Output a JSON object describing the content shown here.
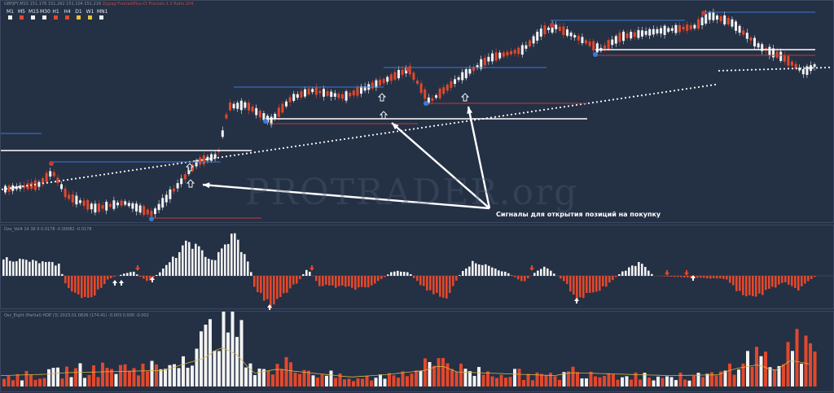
{
  "header": {
    "symbol": "GBPJPY,M15",
    "prices": "151.176 151.262 151.104 151.216",
    "indicators": "Zigzag  FractalsPlus-Ct  Fractals-1.3  Ratio 104"
  },
  "timeframes": [
    "M1",
    "M5",
    "M15",
    "M30",
    "H1",
    "H4",
    "D1",
    "W1",
    "MN1"
  ],
  "timeframe_colors": [
    "#f0f0f0",
    "#e24a2a",
    "#f0f0f0",
    "#f0f0f0",
    "#e24a2a",
    "#e24a2a",
    "#e8c23a",
    "#e8c23a",
    "#f0f0f0"
  ],
  "annotation": {
    "signal_text": "Сигналы для открытия позиций на покупку",
    "watermark": "PROTRADER.org"
  },
  "osc1": {
    "label": "Ozo_Vol4 14 36 9 0.0178 -0.00082 -0.0178"
  },
  "osc2": {
    "label": "Osc_Eight (Partial) HDE (3) 2023.01.0826 (174.41) -0.003 0.000 -0.002"
  },
  "colors": {
    "background": "#243044",
    "bull": "#f2f2f2",
    "bear": "#e2482c",
    "dots": "#f4f4f4",
    "level_blue": "#3a7bd5",
    "level_red": "#c23a3a",
    "level_white": "#ffffff",
    "arrow_white": "#ffffff",
    "ma_line": "#d4b640"
  },
  "icons": [
    "buy-arrow-icon",
    "fractal-up-icon",
    "fractal-down-icon",
    "signal-arrow-icon"
  ]
}
